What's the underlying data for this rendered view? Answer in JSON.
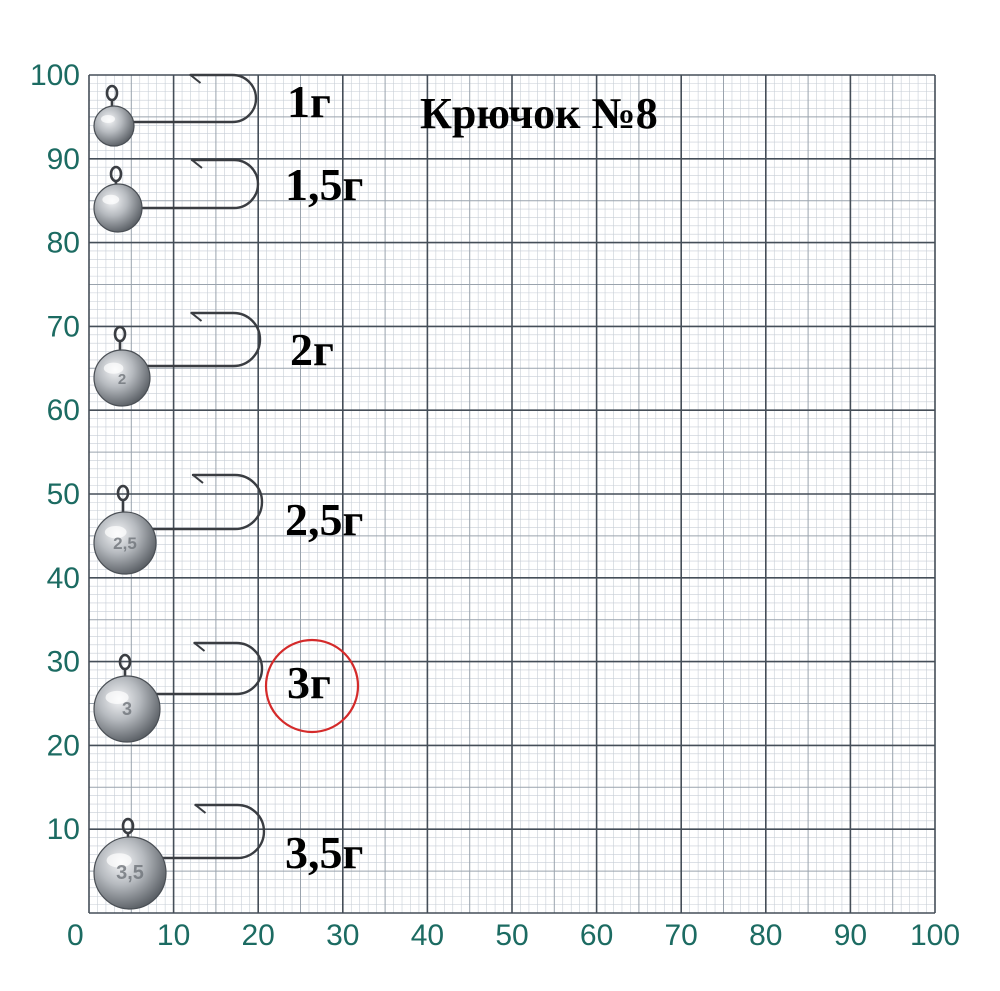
{
  "title": "Крючок №8",
  "colors": {
    "paper": "#ffffff",
    "grid_minor": "#c7ced6",
    "grid_mid": "#9aa3ad",
    "grid_major": "#454e58",
    "axis_text": "#1c6b62",
    "label_text": "#000000",
    "highlight_circle": "#d42a2a",
    "lead": "#a9adb3",
    "hook_wire": "#3a3d42"
  },
  "axes": {
    "x_ticks": [
      "0",
      "10",
      "20",
      "30",
      "40",
      "50",
      "60",
      "70",
      "80",
      "90",
      "100"
    ],
    "y_ticks": [
      "100",
      "90",
      "80",
      "70",
      "60",
      "50",
      "40",
      "30",
      "20",
      "10"
    ]
  },
  "jigs": [
    {
      "weight": "1г",
      "head_emboss": "",
      "highlighted": false
    },
    {
      "weight": "1,5г",
      "head_emboss": "",
      "highlighted": false
    },
    {
      "weight": "2г",
      "head_emboss": "2",
      "highlighted": false
    },
    {
      "weight": "2,5г",
      "head_emboss": "2,5",
      "highlighted": false
    },
    {
      "weight": "3г",
      "head_emboss": "3",
      "highlighted": true
    },
    {
      "weight": "3,5г",
      "head_emboss": "3,5",
      "highlighted": false
    }
  ]
}
